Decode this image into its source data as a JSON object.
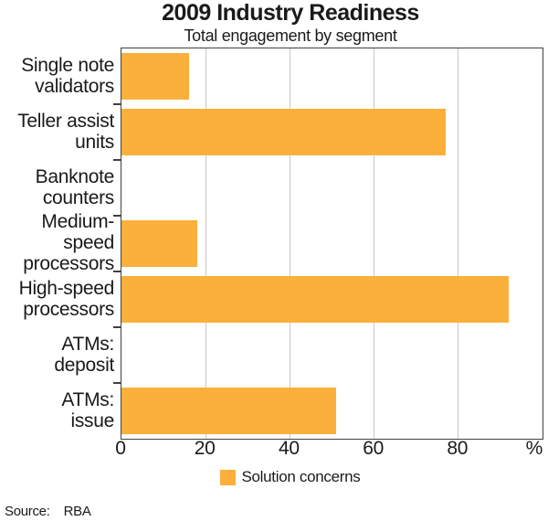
{
  "chart_data": {
    "type": "bar",
    "orientation": "horizontal",
    "title": "2009 Industry Readiness",
    "subtitle": "Total engagement by segment",
    "categories": [
      "Single note\nvalidators",
      "Teller assist\nunits",
      "Banknote\ncounters",
      "Medium-speed\nprocessors",
      "High-speed\nprocessors",
      "ATMs:\ndeposit",
      "ATMs:\nissue"
    ],
    "series": [
      {
        "name": "Solution concerns",
        "color": "#FBB03B",
        "values": [
          16,
          77,
          0,
          18,
          92,
          0,
          51
        ]
      }
    ],
    "xlim": [
      0,
      100
    ],
    "x_ticks": [
      0,
      20,
      40,
      60,
      80
    ],
    "x_unit": "%",
    "grid": "vertical",
    "legend_position": "bottom"
  },
  "source": {
    "label": "Source:",
    "value": "RBA"
  },
  "colors": {
    "bar": "#FBB03B",
    "axis": "#404040",
    "gridline": "#C8C8C8",
    "text": "#1A1A1A"
  }
}
